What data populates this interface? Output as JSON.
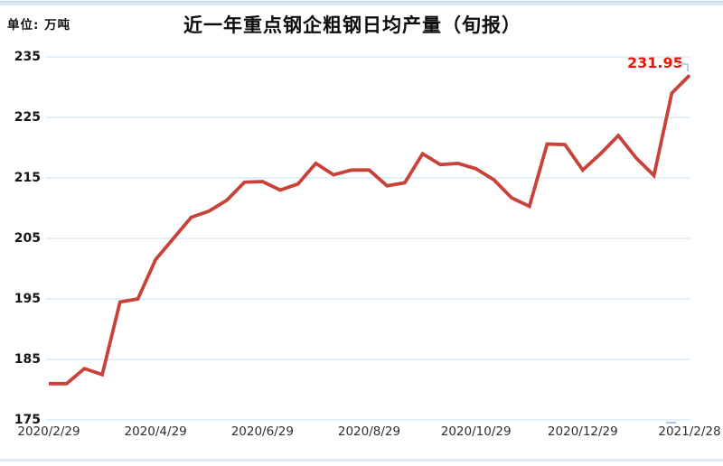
{
  "header": {
    "unit_label": "单位: 万吨",
    "title": "近一年重点钢企粗钢日均产量（旬报）"
  },
  "chart_data": {
    "type": "line",
    "title": "近一年重点钢企粗钢日均产量（旬报）",
    "unit": "单位: 万吨",
    "ylim": [
      175,
      235
    ],
    "y_ticks": [
      235,
      225,
      215,
      205,
      195,
      185,
      175
    ],
    "x_tick_labels": [
      "2020/2/29",
      "2020/4/29",
      "2020/6/29",
      "2020/8/29",
      "2020/10/29",
      "2020/12/29",
      "2021/2/28"
    ],
    "values": [
      181,
      181,
      183.5,
      182.5,
      194.5,
      195,
      201.5,
      205,
      208.5,
      209.5,
      211.3,
      214.3,
      214.4,
      213,
      214,
      217.4,
      215.5,
      216.3,
      216.3,
      213.7,
      214.2,
      219,
      217.2,
      217.4,
      216.5,
      214.7,
      211.7,
      210.3,
      220.6,
      220.5,
      216.3,
      219,
      222,
      218.3,
      215.4,
      229,
      231.95
    ],
    "end_label": "231.95",
    "grid": true,
    "legend_position": "none",
    "line_color": "#c8423a",
    "grid_color": "#d9e8f5",
    "end_label_color": "#ee1309"
  }
}
